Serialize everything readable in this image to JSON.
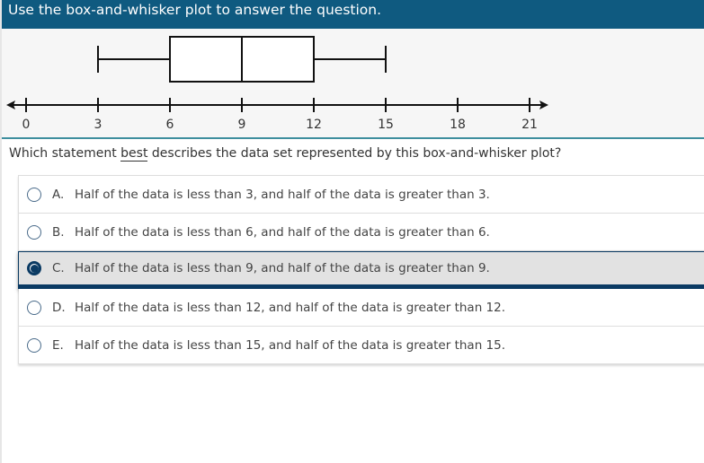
{
  "header": {
    "title": "Use the box-and-whisker plot to answer the question."
  },
  "chart_data": {
    "type": "boxplot",
    "min": 3,
    "q1": 6,
    "median": 9,
    "q3": 12,
    "max": 15,
    "axis": {
      "range": [
        0,
        21
      ],
      "ticks": [
        0,
        3,
        6,
        9,
        12,
        15,
        18,
        21
      ],
      "tick_labels": [
        "0",
        "3",
        "6",
        "9",
        "12",
        "15",
        "18",
        "21"
      ]
    }
  },
  "question": {
    "before": "Which statement ",
    "emphasis": "best",
    "after": " describes the data set represented by this box-and-whisker plot?"
  },
  "options": [
    {
      "letter": "A.",
      "text": "Half of the data is less than 3, and half of the data is greater than 3.",
      "selected": false
    },
    {
      "letter": "B.",
      "text": "Half of the data is less than 6, and half of the data is greater than 6.",
      "selected": false
    },
    {
      "letter": "C.",
      "text": "Half of the data is less than 9, and half of the data is greater than 9.",
      "selected": true
    },
    {
      "letter": "D.",
      "text": "Half of the data is less than 12, and half of the data is greater than 12.",
      "selected": false
    },
    {
      "letter": "E.",
      "text": "Half of the data is less than 15, and half of the data is greater than 15.",
      "selected": false
    }
  ],
  "colors": {
    "header": "#0f5a80",
    "selected": "#0a3a63",
    "divider": "#3e8e9e"
  }
}
